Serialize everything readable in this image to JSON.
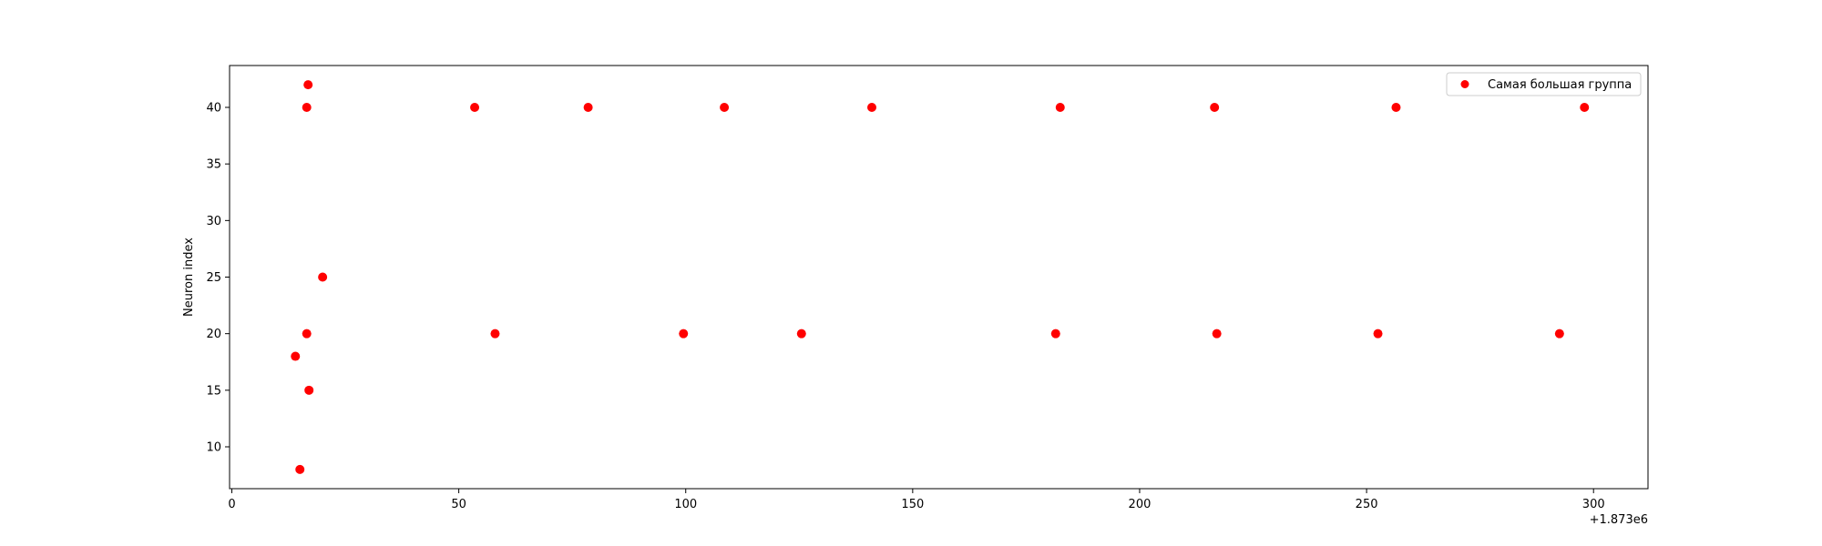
{
  "chart_data": {
    "type": "scatter",
    "title": "",
    "xlabel": "",
    "ylabel": "Neuron index",
    "x_offset_label": "+1.873e6",
    "xlim": [
      -0.5,
      312
    ],
    "ylim": [
      6.3,
      43.7
    ],
    "xticks": [
      0,
      50,
      100,
      150,
      200,
      250,
      300
    ],
    "yticks": [
      10,
      15,
      20,
      25,
      30,
      35,
      40
    ],
    "grid": false,
    "legend": {
      "position": "top-right"
    },
    "series": [
      {
        "name": "Самая большая группа",
        "color": "#ff0000",
        "marker": "circle",
        "points": [
          {
            "x": 14,
            "y": 18
          },
          {
            "x": 15,
            "y": 8
          },
          {
            "x": 16.5,
            "y": 20
          },
          {
            "x": 16.5,
            "y": 40
          },
          {
            "x": 16.8,
            "y": 42
          },
          {
            "x": 17,
            "y": 15
          },
          {
            "x": 20,
            "y": 25
          },
          {
            "x": 53.5,
            "y": 40
          },
          {
            "x": 58,
            "y": 20
          },
          {
            "x": 78.5,
            "y": 40
          },
          {
            "x": 99.5,
            "y": 20
          },
          {
            "x": 108.5,
            "y": 40
          },
          {
            "x": 125.5,
            "y": 20
          },
          {
            "x": 141,
            "y": 40
          },
          {
            "x": 181.5,
            "y": 20
          },
          {
            "x": 182.5,
            "y": 40
          },
          {
            "x": 216.5,
            "y": 40
          },
          {
            "x": 217,
            "y": 20
          },
          {
            "x": 252.5,
            "y": 20
          },
          {
            "x": 256.5,
            "y": 40
          },
          {
            "x": 292.5,
            "y": 20
          },
          {
            "x": 298,
            "y": 40
          }
        ]
      }
    ]
  }
}
